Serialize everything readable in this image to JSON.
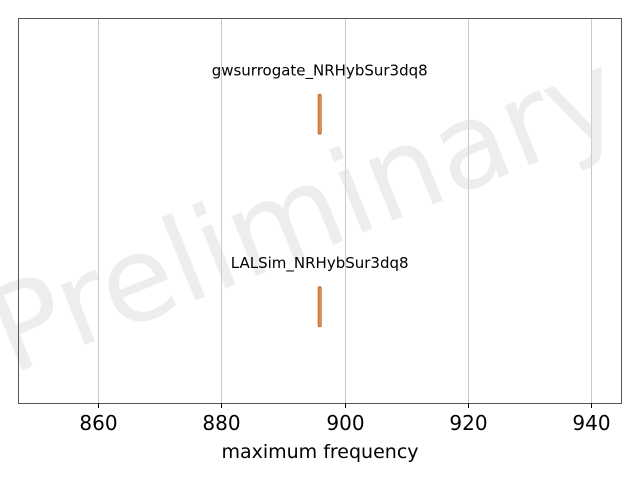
{
  "chart_data": {
    "type": "boxplot",
    "orientation": "horizontal",
    "xlabel": "maximum frequency",
    "xlim": [
      847,
      945
    ],
    "xticks": [
      860,
      880,
      900,
      920,
      940
    ],
    "grid": "vertical",
    "watermark": "Preliminary",
    "series": [
      {
        "name": "gwsurrogate_NRHybSur3dq8",
        "min": 895.8,
        "q1": 895.9,
        "median": 895.95,
        "q3": 896.0,
        "max": 896.1
      },
      {
        "name": "LALSim_NRHybSur3dq8",
        "min": 895.8,
        "q1": 895.9,
        "median": 895.95,
        "q3": 896.0,
        "max": 896.1
      }
    ],
    "colors": {
      "box_fill": "#f0b98a",
      "box_edge": "#b4642a",
      "median": "#e07a2f",
      "grid": "#c8c8c8",
      "axes": "#555555"
    }
  }
}
